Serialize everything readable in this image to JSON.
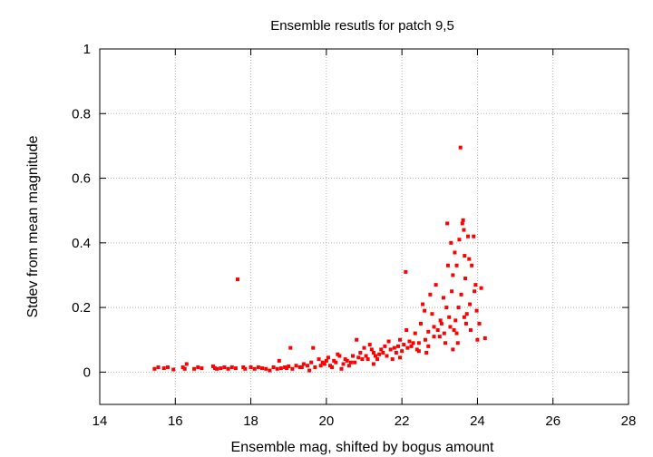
{
  "chart_data": {
    "type": "scatter",
    "title": "Ensemble resutls for patch 9,5",
    "xlabel": "Ensemble mag, shifted by bogus amount",
    "ylabel": "Stdev from mean magnitude",
    "xlim": [
      14,
      28
    ],
    "ylim": [
      -0.1,
      1.0
    ],
    "xticks": [
      14,
      16,
      18,
      20,
      22,
      24,
      26,
      28
    ],
    "yticks": [
      0,
      0.2,
      0.4,
      0.6,
      0.8,
      1
    ],
    "xtick_labels": [
      "14",
      "16",
      "18",
      "20",
      "22",
      "24",
      "26",
      "28"
    ],
    "ytick_labels": [
      "0",
      "0.2",
      "0.4",
      "0.6",
      "0.8",
      "1"
    ],
    "grid": true,
    "marker_color": "#ff0000",
    "series": [
      {
        "points": [
          [
            15.45,
            0.01
          ],
          [
            15.55,
            0.015
          ],
          [
            15.7,
            0.012
          ],
          [
            15.8,
            0.015
          ],
          [
            15.95,
            0.008
          ],
          [
            16.2,
            0.015
          ],
          [
            16.25,
            0.01
          ],
          [
            16.3,
            0.025
          ],
          [
            16.5,
            0.01
          ],
          [
            16.6,
            0.015
          ],
          [
            16.7,
            0.012
          ],
          [
            17.0,
            0.018
          ],
          [
            17.05,
            0.012
          ],
          [
            17.1,
            0.01
          ],
          [
            17.2,
            0.012
          ],
          [
            17.3,
            0.015
          ],
          [
            17.4,
            0.01
          ],
          [
            17.5,
            0.015
          ],
          [
            17.6,
            0.012
          ],
          [
            17.65,
            0.287
          ],
          [
            17.8,
            0.015
          ],
          [
            17.85,
            0.01
          ],
          [
            18.0,
            0.015
          ],
          [
            18.1,
            0.01
          ],
          [
            18.2,
            0.015
          ],
          [
            18.3,
            0.012
          ],
          [
            18.4,
            0.01
          ],
          [
            18.5,
            0.005
          ],
          [
            18.6,
            0.015
          ],
          [
            18.7,
            0.01
          ],
          [
            18.75,
            0.035
          ],
          [
            18.8,
            0.012
          ],
          [
            18.9,
            0.015
          ],
          [
            19.0,
            0.018
          ],
          [
            19.05,
            0.075
          ],
          [
            19.1,
            0.01
          ],
          [
            19.2,
            0.02
          ],
          [
            19.3,
            0.015
          ],
          [
            19.4,
            0.025
          ],
          [
            19.5,
            0.02
          ],
          [
            19.55,
            0.005
          ],
          [
            19.6,
            0.03
          ],
          [
            19.65,
            0.075
          ],
          [
            19.7,
            0.015
          ],
          [
            19.8,
            0.04
          ],
          [
            19.85,
            0.02
          ],
          [
            19.9,
            0.03
          ],
          [
            20.0,
            0.035
          ],
          [
            20.05,
            0.045
          ],
          [
            20.1,
            0.02
          ],
          [
            20.15,
            0.015
          ],
          [
            20.2,
            0.035
          ],
          [
            20.25,
            0.03
          ],
          [
            20.3,
            0.055
          ],
          [
            20.35,
            0.05
          ],
          [
            20.4,
            0.01
          ],
          [
            20.45,
            0.025
          ],
          [
            20.5,
            0.04
          ],
          [
            20.55,
            0.035
          ],
          [
            20.6,
            0.02
          ],
          [
            20.7,
            0.05
          ],
          [
            20.75,
            0.03
          ],
          [
            20.8,
            0.1
          ],
          [
            20.85,
            0.045
          ],
          [
            20.9,
            0.06
          ],
          [
            20.95,
            0.04
          ],
          [
            21.0,
            0.075
          ],
          [
            21.05,
            0.05
          ],
          [
            21.1,
            0.04
          ],
          [
            21.15,
            0.085
          ],
          [
            21.2,
            0.07
          ],
          [
            21.25,
            0.06
          ],
          [
            21.3,
            0.05
          ],
          [
            21.35,
            0.04
          ],
          [
            21.4,
            0.055
          ],
          [
            21.45,
            0.07
          ],
          [
            21.5,
            0.06
          ],
          [
            21.55,
            0.08
          ],
          [
            21.6,
            0.05
          ],
          [
            21.65,
            0.095
          ],
          [
            21.7,
            0.07
          ],
          [
            21.75,
            0.04
          ],
          [
            21.8,
            0.075
          ],
          [
            21.85,
            0.06
          ],
          [
            21.9,
            0.08
          ],
          [
            21.95,
            0.1
          ],
          [
            22.0,
            0.065
          ],
          [
            22.05,
            0.085
          ],
          [
            22.1,
            0.31
          ],
          [
            22.12,
            0.13
          ],
          [
            22.15,
            0.075
          ],
          [
            22.2,
            0.095
          ],
          [
            22.25,
            0.08
          ],
          [
            22.3,
            0.09
          ],
          [
            22.35,
            0.12
          ],
          [
            22.4,
            0.07
          ],
          [
            22.45,
            0.09
          ],
          [
            22.5,
            0.15
          ],
          [
            22.55,
            0.21
          ],
          [
            22.6,
            0.19
          ],
          [
            22.62,
            0.1
          ],
          [
            22.65,
            0.06
          ],
          [
            22.7,
            0.08
          ],
          [
            22.75,
            0.24
          ],
          [
            22.8,
            0.18
          ],
          [
            22.85,
            0.11
          ],
          [
            22.9,
            0.27
          ],
          [
            22.95,
            0.13
          ],
          [
            23.0,
            0.11
          ],
          [
            23.02,
            0.16
          ],
          [
            23.05,
            0.15
          ],
          [
            23.1,
            0.23
          ],
          [
            23.12,
            0.12
          ],
          [
            23.15,
            0.09
          ],
          [
            23.18,
            0.2
          ],
          [
            23.2,
            0.46
          ],
          [
            23.22,
            0.33
          ],
          [
            23.25,
            0.17
          ],
          [
            23.28,
            0.14
          ],
          [
            23.3,
            0.4
          ],
          [
            23.32,
            0.25
          ],
          [
            23.35,
            0.3
          ],
          [
            23.38,
            0.13
          ],
          [
            23.4,
            0.37
          ],
          [
            23.42,
            0.16
          ],
          [
            23.45,
            0.33
          ],
          [
            23.48,
            0.09
          ],
          [
            23.5,
            0.2
          ],
          [
            23.52,
            0.41
          ],
          [
            23.55,
            0.695
          ],
          [
            23.57,
            0.24
          ],
          [
            23.6,
            0.46
          ],
          [
            23.62,
            0.47
          ],
          [
            23.64,
            0.44
          ],
          [
            23.66,
            0.36
          ],
          [
            23.68,
            0.29
          ],
          [
            23.7,
            0.15
          ],
          [
            23.72,
            0.18
          ],
          [
            23.75,
            0.42
          ],
          [
            23.78,
            0.35
          ],
          [
            23.8,
            0.21
          ],
          [
            23.82,
            0.13
          ],
          [
            23.85,
            0.33
          ],
          [
            23.9,
            0.42
          ],
          [
            23.92,
            0.25
          ],
          [
            23.95,
            0.27
          ],
          [
            23.98,
            0.19
          ],
          [
            24.0,
            0.1
          ],
          [
            24.05,
            0.15
          ],
          [
            24.1,
            0.26
          ],
          [
            24.2,
            0.105
          ],
          [
            23.35,
            0.07
          ],
          [
            23.45,
            0.12
          ],
          [
            22.85,
            0.14
          ],
          [
            23.65,
            0.17
          ],
          [
            22.45,
            0.065
          ],
          [
            21.95,
            0.045
          ],
          [
            20.65,
            0.03
          ],
          [
            21.25,
            0.025
          ],
          [
            19.95,
            0.025
          ],
          [
            19.35,
            0.015
          ],
          [
            18.95,
            0.012
          ],
          [
            22.7,
            0.125
          ]
        ]
      }
    ]
  }
}
